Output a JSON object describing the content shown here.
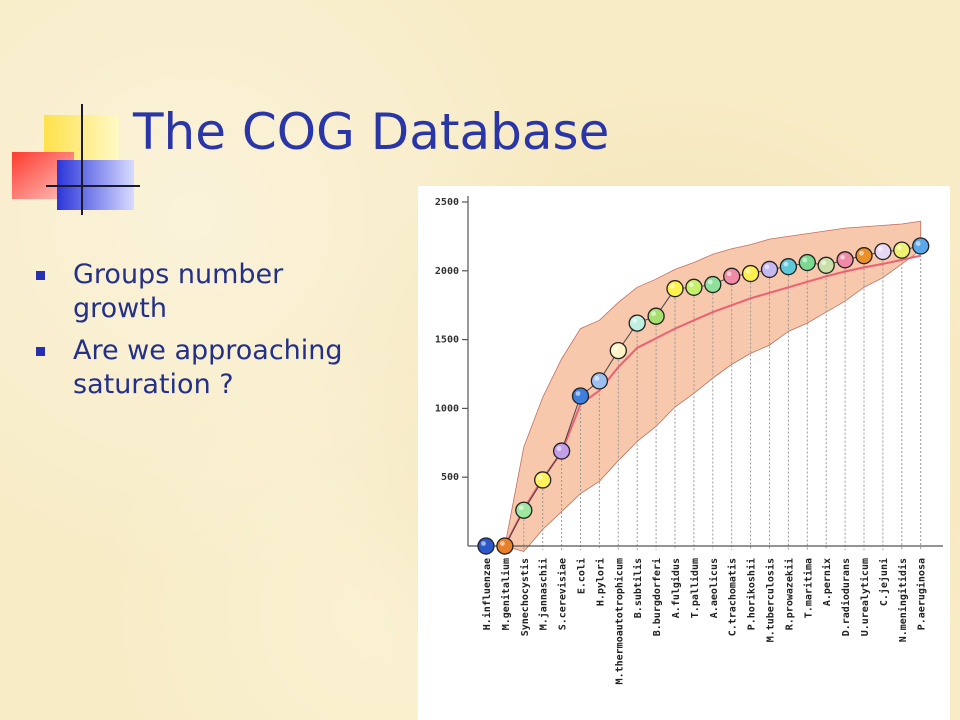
{
  "slide": {
    "title": "The COG Database",
    "bullets": [
      "Groups number growth",
      "Are we approaching saturation ?"
    ]
  },
  "chart_data": {
    "type": "scatter",
    "title": "",
    "xlabel": "",
    "ylabel": "",
    "ylim": [
      0,
      2500
    ],
    "yticks": [
      500,
      1000,
      1500,
      2000,
      2500
    ],
    "categories": [
      "H.influenzae",
      "M.genitalium",
      "Synechocystis",
      "M.jannaschii",
      "S.cerevisiae",
      "E.coli",
      "H.pylori",
      "M.thermoautotrophicum",
      "B.subtilis",
      "B.burgdorferi",
      "A.fulgidus",
      "T.pallidum",
      "A.aeolicus",
      "C.trachomatis",
      "P.horikoshii",
      "M.tuberculosis",
      "R.prowazekii",
      "T.maritima",
      "A.pernix",
      "D.radiodurans",
      "U.urealyticum",
      "C.jejuni",
      "N.meningitidis",
      "P.aeruginosa"
    ],
    "series": [
      {
        "type": "points",
        "values": [
          0,
          0,
          260,
          480,
          690,
          1090,
          1200,
          1420,
          1620,
          1670,
          1870,
          1880,
          1900,
          1960,
          1980,
          2010,
          2030,
          2060,
          2040,
          2080,
          2110,
          2140,
          2150,
          2180
        ]
      },
      {
        "type": "line",
        "values": [
          0,
          0,
          270,
          490,
          680,
          1030,
          1130,
          1300,
          1440,
          1510,
          1580,
          1640,
          1700,
          1750,
          1800,
          1840,
          1880,
          1920,
          1960,
          1995,
          2025,
          2050,
          2080,
          2110
        ]
      },
      {
        "type": "band-upper",
        "values": [
          0,
          0,
          720,
          1080,
          1360,
          1580,
          1640,
          1770,
          1880,
          1940,
          2010,
          2060,
          2120,
          2160,
          2190,
          2230,
          2250,
          2270,
          2290,
          2310,
          2320,
          2330,
          2340,
          2360
        ]
      },
      {
        "type": "band-lower",
        "values": [
          0,
          0,
          -40,
          120,
          250,
          380,
          470,
          620,
          760,
          870,
          1010,
          1110,
          1220,
          1320,
          1400,
          1460,
          1560,
          1620,
          1700,
          1780,
          1880,
          1950,
          2050,
          2150
        ]
      }
    ],
    "point_colors": [
      "#2b57c9",
      "#e8802a",
      "#9fe6a0",
      "#fff25a",
      "#c49ee8",
      "#3f7fdc",
      "#9ec0f0",
      "#fff4c8",
      "#bff0e0",
      "#a8e070",
      "#fff24a",
      "#c6f06a",
      "#8ee09a",
      "#f08aa6",
      "#fff04e",
      "#c4b8f0",
      "#5fc8d8",
      "#7ad890",
      "#c8e0a8",
      "#f08aa6",
      "#ec9028",
      "#e8d8f8",
      "#eef070",
      "#5aa8e8"
    ],
    "colors": {
      "band": "#f7c8ac",
      "mean_line": "#ee5f72",
      "axis": "#555555",
      "grid": "#999999"
    }
  }
}
